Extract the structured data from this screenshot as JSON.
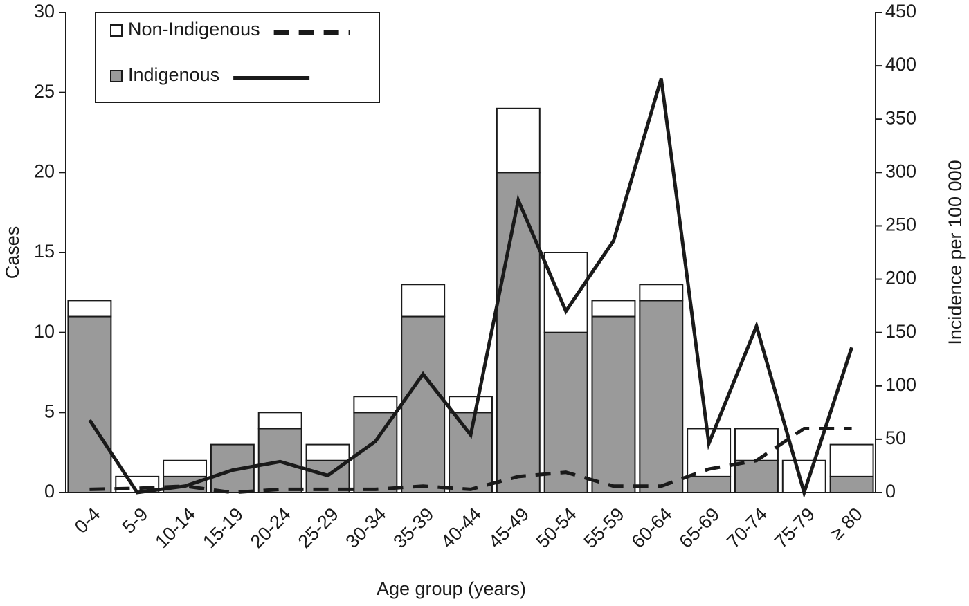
{
  "chart_data": {
    "type": "bar",
    "x_label": "Age group (years)",
    "y_label": "Cases",
    "y2_label": "Incidence per 100 000",
    "categories": [
      "0-4",
      "5-9",
      "10-14",
      "15-19",
      "20-24",
      "25-29",
      "30-34",
      "35-39",
      "40-44",
      "45-49",
      "50-54",
      "55-59",
      "60-64",
      "65-69",
      "70-74",
      "75-79",
      "≥ 80"
    ],
    "series": [
      {
        "name": "Indigenous",
        "color": "#9a9a9a",
        "line_dash": false,
        "values": [
          11,
          0,
          1,
          3,
          4,
          2,
          5,
          11,
          5,
          20,
          10,
          11,
          12,
          1,
          2,
          0,
          1
        ],
        "incidence": [
          68,
          0,
          6,
          21,
          29,
          16,
          48,
          111,
          54,
          274,
          170,
          236,
          388,
          46,
          156,
          0,
          136
        ]
      },
      {
        "name": "Non-Indigenous",
        "color": "#ffffff",
        "line_dash": true,
        "values": [
          1,
          1,
          1,
          0,
          1,
          1,
          1,
          2,
          1,
          4,
          5,
          1,
          1,
          3,
          2,
          2,
          2
        ],
        "incidence": [
          3,
          4,
          6,
          0,
          3,
          3,
          3,
          6,
          3,
          15,
          19,
          6,
          6,
          22,
          30,
          60,
          60
        ]
      }
    ],
    "line_color": "#1a1a1a",
    "ylim": [
      0,
      30
    ],
    "yticks": [
      0,
      5,
      10,
      15,
      20,
      25,
      30
    ],
    "y2lim": [
      0,
      450
    ],
    "y2ticks": [
      0,
      50,
      100,
      150,
      200,
      250,
      300,
      350,
      400,
      450
    ]
  }
}
